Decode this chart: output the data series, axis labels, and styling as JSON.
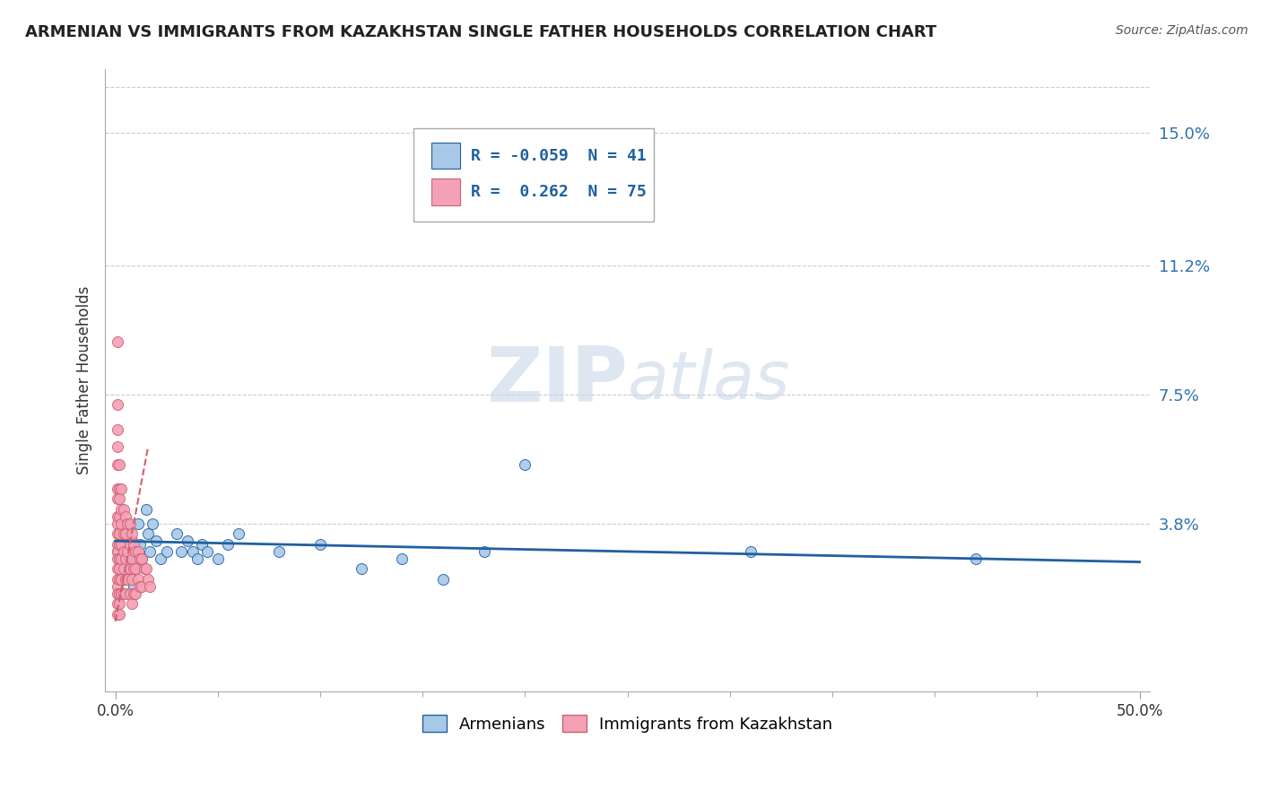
{
  "title": "ARMENIAN VS IMMIGRANTS FROM KAZAKHSTAN SINGLE FATHER HOUSEHOLDS CORRELATION CHART",
  "source": "Source: ZipAtlas.com",
  "ylabel": "Single Father Households",
  "ytick_labels": [
    "3.8%",
    "7.5%",
    "11.2%",
    "15.0%"
  ],
  "ytick_values": [
    0.038,
    0.075,
    0.112,
    0.15
  ],
  "xlim": [
    -0.005,
    0.505
  ],
  "ylim": [
    -0.01,
    0.168
  ],
  "xtick_positions": [
    0.0,
    0.5
  ],
  "xtick_labels": [
    "0.0%",
    "50.0%"
  ],
  "armenian_color": "#a8c8e8",
  "kazakhstan_color": "#f4a0b5",
  "trendline_armenian_color": "#2060a0",
  "trendline_kazakhstan_color": "#d06070",
  "background_color": "#ffffff",
  "grid_color": "#cccccc",
  "legend_r1_text": "R = -0.059  N = 41",
  "legend_r2_text": "R =  0.262  N = 75",
  "armenian_x": [
    0.001,
    0.002,
    0.003,
    0.004,
    0.005,
    0.005,
    0.006,
    0.007,
    0.008,
    0.009,
    0.01,
    0.01,
    0.011,
    0.012,
    0.013,
    0.015,
    0.016,
    0.017,
    0.018,
    0.02,
    0.022,
    0.025,
    0.03,
    0.032,
    0.035,
    0.038,
    0.04,
    0.042,
    0.045,
    0.05,
    0.055,
    0.06,
    0.08,
    0.1,
    0.12,
    0.14,
    0.16,
    0.18,
    0.2,
    0.31,
    0.42
  ],
  "armenian_y": [
    0.03,
    0.028,
    0.032,
    0.025,
    0.035,
    0.022,
    0.03,
    0.028,
    0.033,
    0.02,
    0.03,
    0.025,
    0.038,
    0.032,
    0.028,
    0.042,
    0.035,
    0.03,
    0.038,
    0.033,
    0.028,
    0.03,
    0.035,
    0.03,
    0.033,
    0.03,
    0.028,
    0.032,
    0.03,
    0.028,
    0.032,
    0.035,
    0.03,
    0.032,
    0.025,
    0.028,
    0.022,
    0.03,
    0.055,
    0.03,
    0.028
  ],
  "kazakhstan_x": [
    0.001,
    0.001,
    0.001,
    0.001,
    0.001,
    0.001,
    0.001,
    0.001,
    0.001,
    0.001,
    0.001,
    0.001,
    0.001,
    0.001,
    0.001,
    0.001,
    0.001,
    0.001,
    0.001,
    0.002,
    0.002,
    0.002,
    0.002,
    0.002,
    0.002,
    0.002,
    0.002,
    0.002,
    0.002,
    0.002,
    0.002,
    0.003,
    0.003,
    0.003,
    0.003,
    0.003,
    0.003,
    0.003,
    0.004,
    0.004,
    0.004,
    0.004,
    0.004,
    0.005,
    0.005,
    0.005,
    0.005,
    0.005,
    0.006,
    0.006,
    0.006,
    0.007,
    0.007,
    0.007,
    0.007,
    0.008,
    0.008,
    0.008,
    0.008,
    0.009,
    0.009,
    0.009,
    0.01,
    0.01,
    0.01,
    0.011,
    0.011,
    0.012,
    0.012,
    0.013,
    0.013,
    0.014,
    0.015,
    0.016,
    0.017
  ],
  "kazakhstan_y": [
    0.09,
    0.072,
    0.065,
    0.06,
    0.055,
    0.048,
    0.045,
    0.04,
    0.038,
    0.035,
    0.032,
    0.03,
    0.028,
    0.025,
    0.022,
    0.02,
    0.018,
    0.015,
    0.012,
    0.055,
    0.048,
    0.045,
    0.04,
    0.035,
    0.032,
    0.028,
    0.025,
    0.022,
    0.018,
    0.015,
    0.012,
    0.048,
    0.042,
    0.038,
    0.032,
    0.028,
    0.022,
    0.018,
    0.042,
    0.035,
    0.03,
    0.025,
    0.018,
    0.04,
    0.035,
    0.028,
    0.022,
    0.018,
    0.038,
    0.03,
    0.022,
    0.038,
    0.032,
    0.025,
    0.018,
    0.035,
    0.028,
    0.022,
    0.015,
    0.032,
    0.025,
    0.018,
    0.03,
    0.025,
    0.018,
    0.03,
    0.022,
    0.028,
    0.02,
    0.028,
    0.02,
    0.025,
    0.025,
    0.022,
    0.02
  ],
  "arm_trendline_x": [
    0.0,
    0.5
  ],
  "arm_trendline_y": [
    0.033,
    0.027
  ],
  "kaz_trendline_x": [
    0.0,
    0.016
  ],
  "kaz_trendline_y": [
    0.01,
    0.06
  ]
}
